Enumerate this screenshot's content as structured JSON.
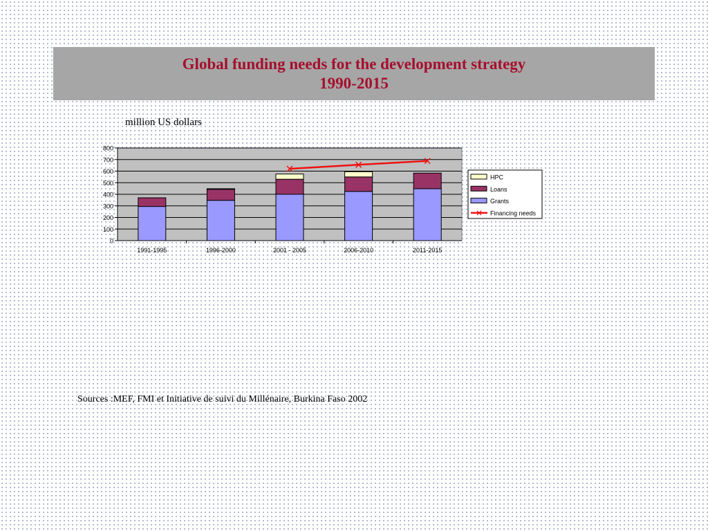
{
  "title": {
    "line1": "Global funding needs for the development strategy",
    "line2": "1990-2015"
  },
  "units_label": "million US dollars",
  "sources": "Sources :MEF, FMI et Initiative de suivi du Millénaire, Burkina Faso 2002",
  "chart_data": {
    "type": "bar",
    "stacked": true,
    "categories": [
      "1991-1995",
      "1996-2000",
      "2001 - 2005",
      "2006-2010",
      "2011-2015"
    ],
    "series": [
      {
        "name": "Grants",
        "kind": "bar",
        "color": "#9999ff",
        "values": [
          295,
          348,
          400,
          425,
          448
        ]
      },
      {
        "name": "Loans",
        "kind": "bar",
        "color": "#993366",
        "values": [
          75,
          95,
          130,
          125,
          135
        ]
      },
      {
        "name": "HPC",
        "kind": "bar",
        "color": "#ffffcc",
        "values": [
          0,
          5,
          45,
          45,
          0
        ]
      },
      {
        "name": "Financing needs",
        "kind": "line",
        "color": "#ee1111",
        "values": [
          null,
          null,
          620,
          655,
          688
        ]
      }
    ],
    "legend_order": [
      "HPC",
      "Loans",
      "Grants",
      "Financing needs"
    ],
    "ylim": [
      0,
      800
    ],
    "yticks": [
      0,
      100,
      200,
      300,
      400,
      500,
      600,
      700,
      800
    ],
    "grid": true,
    "legend_position": "right",
    "plot_background": "#c0c0c0"
  }
}
